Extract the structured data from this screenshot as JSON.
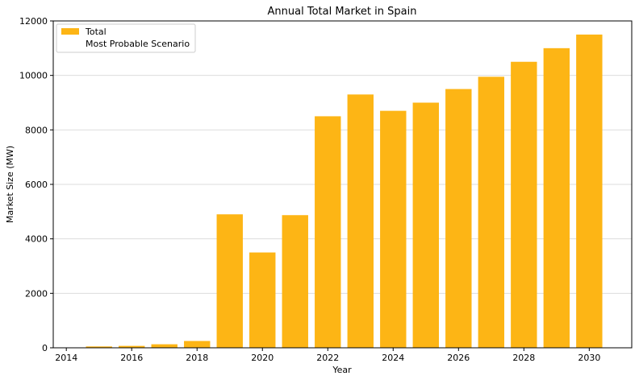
{
  "chart_data": {
    "type": "bar",
    "title": "Annual Total Market in Spain",
    "xlabel": "Year",
    "ylabel": "Market Size (MW)",
    "x": [
      2015,
      2016,
      2017,
      2018,
      2019,
      2020,
      2021,
      2022,
      2023,
      2024,
      2025,
      2026,
      2027,
      2028,
      2029,
      2030
    ],
    "series": [
      {
        "name": "Total",
        "values": [
          50,
          70,
          130,
          250,
          4900,
          3500,
          4870,
          8500,
          9300,
          8700,
          9000,
          9500,
          9950,
          10500,
          11000,
          11500
        ],
        "color": "#FDB515"
      }
    ],
    "legend": {
      "entries": [
        "Total",
        "Most Probable Scenario"
      ],
      "location": "upper-left"
    },
    "xlim": [
      2013.6,
      2031.3
    ],
    "ylim": [
      0,
      12000
    ],
    "xticks": [
      2014,
      2016,
      2018,
      2020,
      2022,
      2024,
      2026,
      2028,
      2030
    ],
    "yticks": [
      0,
      2000,
      4000,
      6000,
      8000,
      10000,
      12000
    ],
    "grid": "y-major",
    "bar_width_years": 0.8
  }
}
